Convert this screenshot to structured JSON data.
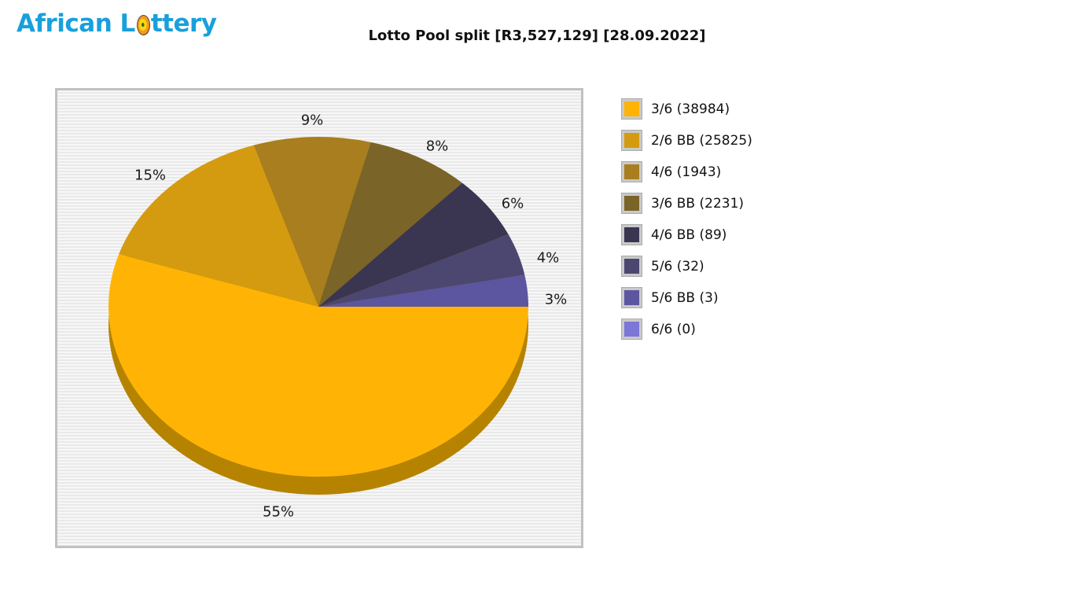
{
  "logo": {
    "full_text": "African Lottery",
    "text_before_ball": "African L",
    "text_after_ball": "ttery",
    "color": "#18A0DC"
  },
  "header": {
    "title": "Lotto Pool split [R3,527,129] [28.09.2022]"
  },
  "chart_data": {
    "type": "pie",
    "style": "3d-pie",
    "title": "Lotto Pool split [R3,527,129] [28.09.2022]",
    "total_pool": "R3,527,129",
    "draw_date": "28.09.2022",
    "legend_position": "right",
    "rim_color": "#B58300",
    "slices": [
      {
        "name": "3/6",
        "winners": 38984,
        "pct": 55,
        "pct_label": "55%",
        "color": "#FFB405"
      },
      {
        "name": "2/6 BB",
        "winners": 25825,
        "pct": 15,
        "pct_label": "15%",
        "color": "#D49B10"
      },
      {
        "name": "4/6",
        "winners": 1943,
        "pct": 9,
        "pct_label": "9%",
        "color": "#A87E1E"
      },
      {
        "name": "3/6 BB",
        "winners": 2231,
        "pct": 8,
        "pct_label": "8%",
        "color": "#7A6428"
      },
      {
        "name": "4/6 BB",
        "winners": 89,
        "pct": 6,
        "pct_label": "6%",
        "color": "#3A3550"
      },
      {
        "name": "5/6",
        "winners": 32,
        "pct": 4,
        "pct_label": "4%",
        "color": "#4C4770"
      },
      {
        "name": "5/6 BB",
        "winners": 3,
        "pct": 3,
        "pct_label": "3%",
        "color": "#5C55A0"
      },
      {
        "name": "6/6",
        "winners": 0,
        "pct": 0,
        "pct_label": "0%",
        "color": "#7C76D6"
      }
    ]
  }
}
